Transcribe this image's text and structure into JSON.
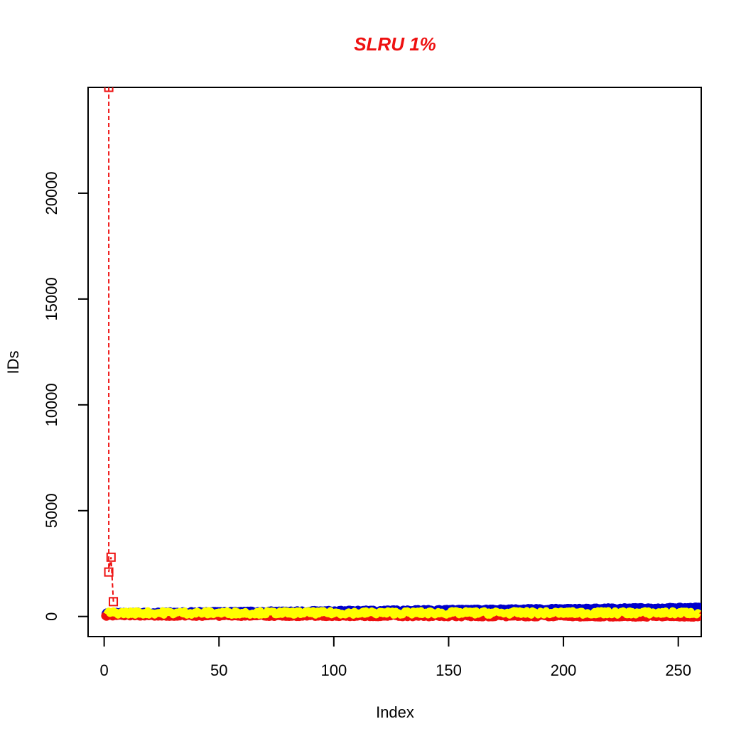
{
  "chart_data": {
    "type": "scatter",
    "title": "SLRU 1%",
    "title_color": "#ee1111",
    "xlabel": "Index",
    "ylabel": "IDs",
    "xlim": [
      -7,
      260
    ],
    "ylim": [
      -950,
      25000
    ],
    "x_ticks": [
      0,
      50,
      100,
      150,
      200,
      250
    ],
    "y_ticks": [
      0,
      5000,
      10000,
      15000,
      20000
    ],
    "grid": false,
    "legend": "none",
    "series": [
      {
        "color": "#0000cc",
        "style": "dense points",
        "x_range": [
          1,
          259
        ],
        "y_start": 150,
        "y_end": 400
      },
      {
        "color": "#ee1111",
        "style": "dense points",
        "x_range": [
          1,
          259
        ],
        "y_start": 60,
        "y_end": 10
      },
      {
        "color": "#ffff00",
        "style": "thick noisy line",
        "x_range": [
          1,
          259
        ],
        "y_min": 60,
        "y_max": 280
      },
      {
        "color": "#ee1111",
        "style": "dashed line with square markers",
        "x": [
          2,
          2,
          3,
          4
        ],
        "y": [
          25000,
          2100,
          2800,
          700
        ]
      }
    ]
  }
}
